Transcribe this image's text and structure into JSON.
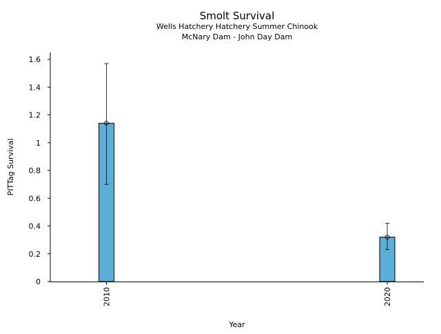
{
  "chart_data": {
    "type": "bar",
    "title": "Smolt Survival",
    "subtitle_lines": [
      "Wells Hatchery Hatchery Summer Chinook",
      "McNary Dam - John Day Dam"
    ],
    "xlabel": "Year",
    "ylabel": "PITTag Survival",
    "x_range": [
      2008,
      2021.3
    ],
    "ylim": [
      0,
      1.65
    ],
    "yticks": [
      0,
      0.2,
      0.4,
      0.6,
      0.8,
      1,
      1.2,
      1.4,
      1.6
    ],
    "ytick_labels": [
      "0",
      "0.2",
      "0.4",
      "0.6",
      "0.8",
      "1",
      "1.2",
      "1.4",
      "1.6"
    ],
    "grid": false,
    "bar_color": "#5BAED6",
    "edge_color": "#000000",
    "points": [
      {
        "x": 2010,
        "label": "2010",
        "value": 1.14,
        "error_low": 0.7,
        "error_high": 1.57
      },
      {
        "x": 2020,
        "label": "2020",
        "value": 0.32,
        "error_low": 0.23,
        "error_high": 0.42
      }
    ]
  }
}
